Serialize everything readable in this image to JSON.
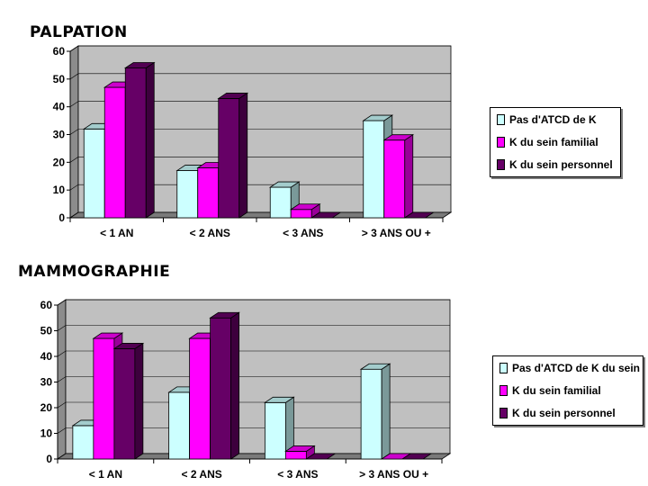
{
  "chart_data": [
    {
      "type": "bar",
      "title": "PALPATION",
      "categories": [
        "< 1 AN",
        "< 2 ANS",
        "< 3 ANS",
        "> 3 ANS OU +"
      ],
      "series": [
        {
          "name": "Pas d'ATCD de K",
          "color": "#ccffff",
          "values": [
            32,
            17,
            11,
            35
          ]
        },
        {
          "name": "K du sein familial",
          "color": "#ff00ff",
          "values": [
            47,
            18,
            3,
            28
          ]
        },
        {
          "name": "K du sein personnel",
          "color": "#660066",
          "values": [
            54,
            43,
            0,
            0
          ]
        }
      ],
      "ylim": [
        0,
        60
      ],
      "yticks": [
        0,
        10,
        20,
        30,
        40,
        50,
        60
      ],
      "xlabel": "",
      "ylabel": "",
      "grid": true,
      "legend": "right"
    },
    {
      "type": "bar",
      "title": "MAMMOGRAPHIE",
      "categories": [
        "< 1 AN",
        "< 2 ANS",
        "< 3 ANS",
        "> 3 ANS OU +"
      ],
      "series": [
        {
          "name": "Pas d'ATCD de K du sein",
          "color": "#ccffff",
          "values": [
            13,
            26,
            22,
            35
          ]
        },
        {
          "name": "K du sein familial",
          "color": "#ff00ff",
          "values": [
            47,
            47,
            3,
            0
          ]
        },
        {
          "name": "K du sein personnel",
          "color": "#660066",
          "values": [
            43,
            55,
            0,
            0
          ]
        }
      ],
      "ylim": [
        0,
        60
      ],
      "yticks": [
        0,
        10,
        20,
        30,
        40,
        50,
        60
      ],
      "xlabel": "",
      "ylabel": "",
      "grid": true,
      "legend": "right"
    }
  ]
}
